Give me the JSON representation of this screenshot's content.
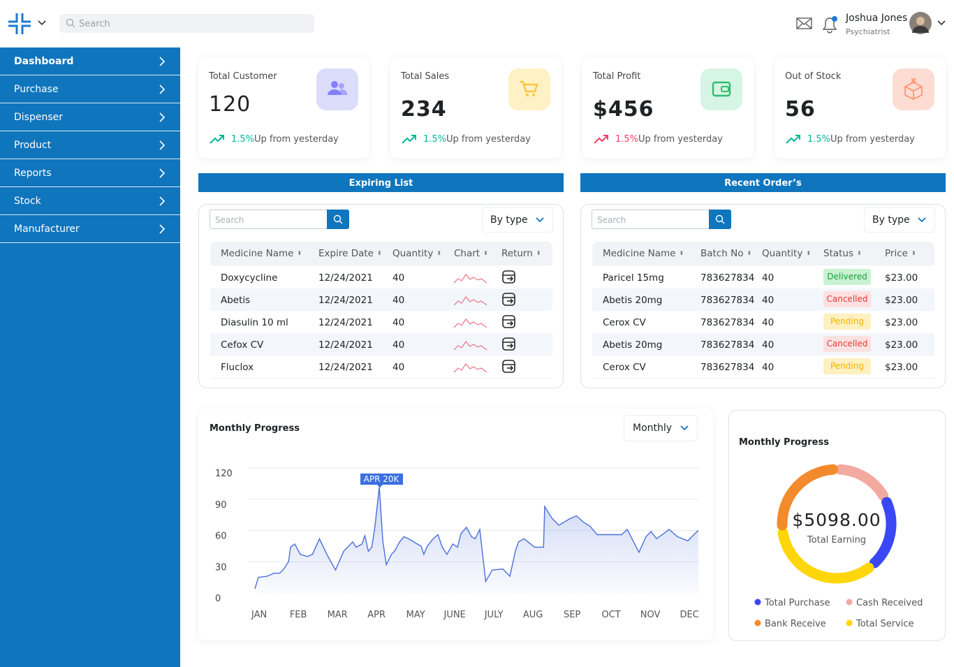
{
  "header": {
    "search_placeholder": "Search",
    "user_name": "Joshua Jones",
    "user_role": "Psychiatrist"
  },
  "sidebar": [
    "Dashboard",
    "Purchase",
    "Dispenser",
    "Product",
    "Reports",
    "Stock",
    "Manufacturer"
  ],
  "stats": [
    {
      "title": "Total Customer",
      "value": "120",
      "change": "1.5%",
      "change_text": "Up from yesterday",
      "color": "#00b69b",
      "icon_bg": "#dcdcfb",
      "icon_color": "#8280ff"
    },
    {
      "title": "Total Sales",
      "value": "234",
      "change": "1.5%",
      "change_text": "Up from yesterday",
      "color": "#00b69b",
      "icon_bg": "#fef1c5",
      "icon_color": "#fec53d"
    },
    {
      "title": "Total Profit",
      "value": "$456",
      "change": "1.5%",
      "change_text": "Up from yesterday",
      "color": "#f93c65",
      "icon_bg": "#d6f5e4",
      "icon_color": "#2fbd6e"
    },
    {
      "title": "Out of Stock",
      "value": "56",
      "change": "1.5%",
      "change_text": "Up from yesterday",
      "color": "#00b69b",
      "icon_bg": "#fddcd3",
      "icon_color": "#ff9066"
    }
  ],
  "expiring": {
    "title": "Expiring List",
    "search_placeholder": "Search",
    "filter": "By type",
    "columns": [
      "Medicine Name",
      "Expire Date",
      "Quantity",
      "Chart",
      "Return"
    ],
    "rows": [
      [
        "Doxycycline",
        "12/24/2021",
        "40"
      ],
      [
        "Abetis",
        "12/24/2021",
        "40"
      ],
      [
        "Diasulin 10 ml",
        "12/24/2021",
        "40"
      ],
      [
        "Cefox CV",
        "12/24/2021",
        "40"
      ],
      [
        "Fluclox",
        "12/24/2021",
        "40"
      ]
    ]
  },
  "orders": {
    "title": "Recent Order’s",
    "search_placeholder": "Search",
    "filter": "By type",
    "columns": [
      "Medicine Name",
      "Batch No",
      "Quantity",
      "Status",
      "Price"
    ],
    "rows": [
      [
        "Paricel 15mg",
        "783627834",
        "40",
        "Delivered",
        "$23.00"
      ],
      [
        "Abetis 20mg",
        "783627834",
        "40",
        "Cancelled",
        "$23.00"
      ],
      [
        "Cerox CV",
        "783627834",
        "40",
        "Pending",
        "$23.00"
      ],
      [
        "Abetis 20mg",
        "783627834",
        "40",
        "Cancelled",
        "$23.00"
      ],
      [
        "Cerox CV",
        "783627834",
        "40",
        "Pending",
        "$23.00"
      ]
    ]
  },
  "monthly_chart": {
    "type": "line",
    "title": "Monthly Progress",
    "period": "Monthly",
    "annotation": "APR 20K",
    "color": "#4a6fdc",
    "grid": true,
    "x": [
      -0.11,
      -0.02,
      0.2,
      0.38,
      0.52,
      0.61,
      0.75,
      0.8,
      0.91,
      1.05,
      1.23,
      1.36,
      1.54,
      1.73,
      1.95,
      2.16,
      2.39,
      2.48,
      2.63,
      2.7,
      2.79,
      2.88,
      2.96,
      3.07,
      3.16,
      3.25,
      3.38,
      3.46,
      3.59,
      3.7,
      3.82,
      3.91,
      4.04,
      4.14,
      4.21,
      4.3,
      4.45,
      4.57,
      4.68,
      4.8,
      4.95,
      5.07,
      5.16,
      5.3,
      5.43,
      5.52,
      5.64,
      5.79,
      5.96,
      6.23,
      6.41,
      6.55,
      6.63,
      6.77,
      7.04,
      7.27,
      7.3,
      7.48,
      7.66,
      7.93,
      8.11,
      8.29,
      8.46,
      8.64,
      9.0,
      9.27,
      9.41,
      9.71,
      9.89,
      10.02,
      10.16,
      10.34,
      10.48,
      10.7,
      10.96,
      11.14,
      11.23
    ],
    "values": [
      4,
      15,
      16,
      19,
      19,
      22,
      30,
      44,
      47,
      37,
      35,
      37,
      52,
      37,
      22,
      40,
      49,
      44,
      47,
      55,
      40,
      44,
      64,
      102,
      50,
      27,
      37,
      40,
      49,
      54,
      52,
      50,
      47,
      45,
      37,
      45,
      52,
      56,
      44,
      37,
      47,
      44,
      57,
      63,
      54,
      52,
      61,
      11,
      22,
      23,
      16,
      40,
      49,
      52,
      44,
      44,
      83,
      72,
      65,
      71,
      74,
      68,
      64,
      56,
      56,
      56,
      61,
      39,
      54,
      59,
      52,
      57,
      61,
      54,
      50,
      57,
      60
    ],
    "xlim": [
      -0.11,
      11.23
    ],
    "ylim": [
      0,
      120
    ],
    "yticks": [
      0,
      30,
      60,
      90,
      120
    ],
    "xticks": [
      {
        "value": 0,
        "label": "JAN"
      },
      {
        "value": 1,
        "label": "FEB"
      },
      {
        "value": 2,
        "label": "MAR"
      },
      {
        "value": 3,
        "label": "APR"
      },
      {
        "value": 4,
        "label": "MAY"
      },
      {
        "value": 5,
        "label": "JUNE"
      },
      {
        "value": 6,
        "label": "JULY"
      },
      {
        "value": 7,
        "label": "AUG"
      },
      {
        "value": 8,
        "label": "SEP"
      },
      {
        "value": 9,
        "label": "OCT"
      },
      {
        "value": 10,
        "label": "NOV"
      },
      {
        "value": 11,
        "label": "DEC"
      }
    ]
  },
  "earning_chart": {
    "type": "donut",
    "title": "Monthly Progress",
    "center_value": "$5098.00",
    "center_label": "Total Earning",
    "categories": [
      "Cash Received",
      "Total Purchase",
      "Total Service",
      "Bank Receive"
    ],
    "values": [
      15,
      19,
      32,
      24
    ],
    "colors": [
      "#f2aaa0",
      "#3a47f5",
      "#ffd60a",
      "#f38b2c"
    ]
  }
}
